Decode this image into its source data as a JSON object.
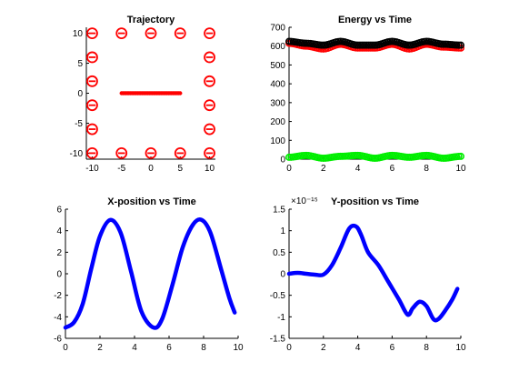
{
  "chart_data": [
    {
      "type": "scatter",
      "title": "Trajectory",
      "xlim": [
        -11,
        11
      ],
      "ylim": [
        -11,
        11
      ],
      "xticks": [
        -10,
        -5,
        0,
        5,
        10
      ],
      "yticks": [
        -10,
        -5,
        0,
        5,
        10
      ],
      "box_x": [
        -10,
        -5,
        0,
        5,
        10
      ],
      "box_y": [
        -10,
        -5,
        0,
        5,
        10
      ],
      "charges": [
        {
          "x": -10,
          "y": 10
        },
        {
          "x": -5,
          "y": 10
        },
        {
          "x": 0,
          "y": 10
        },
        {
          "x": 5,
          "y": 10
        },
        {
          "x": 10,
          "y": 10
        },
        {
          "x": -10,
          "y": -10
        },
        {
          "x": -5,
          "y": -10
        },
        {
          "x": 0,
          "y": -10
        },
        {
          "x": 5,
          "y": -10
        },
        {
          "x": 10,
          "y": -10
        },
        {
          "x": -10,
          "y": 6
        },
        {
          "x": -10,
          "y": 2
        },
        {
          "x": -10,
          "y": -2
        },
        {
          "x": -10,
          "y": -6
        },
        {
          "x": 10,
          "y": 6
        },
        {
          "x": 10,
          "y": 2
        },
        {
          "x": 10,
          "y": -2
        },
        {
          "x": 10,
          "y": -6
        }
      ],
      "path": {
        "x_from": -5,
        "x_to": 5,
        "y": 0
      },
      "marker_color": "#ff0000"
    },
    {
      "type": "line",
      "title": "Energy vs Time",
      "xlim": [
        0,
        10
      ],
      "ylim": [
        0,
        700
      ],
      "xticks": [
        0,
        2,
        4,
        6,
        8,
        10
      ],
      "yticks": [
        0,
        100,
        200,
        300,
        400,
        500,
        600,
        700
      ],
      "series": [
        {
          "color": "#ff0000",
          "x": [
            0,
            1,
            2,
            3,
            4,
            5,
            6,
            7,
            8,
            9,
            10
          ],
          "y": [
            615,
            600,
            585,
            610,
            590,
            590,
            610,
            585,
            610,
            595,
            590
          ]
        },
        {
          "color": "#000000",
          "x": [
            0,
            1,
            2,
            3,
            4,
            5,
            6,
            7,
            8,
            9,
            10
          ],
          "y": [
            625,
            615,
            605,
            625,
            605,
            605,
            625,
            605,
            625,
            610,
            605
          ]
        },
        {
          "color": "#00ee00",
          "x": [
            0,
            1,
            2,
            3,
            4,
            5,
            6,
            7,
            8,
            9,
            10
          ],
          "y": [
            10,
            20,
            5,
            15,
            20,
            5,
            20,
            10,
            20,
            5,
            15
          ]
        }
      ]
    },
    {
      "type": "line",
      "title": "X-position vs Time",
      "xlim": [
        0,
        10
      ],
      "ylim": [
        -6,
        6
      ],
      "xticks": [
        0,
        2,
        4,
        6,
        8,
        10
      ],
      "yticks": [
        -6,
        -4,
        -2,
        0,
        2,
        4,
        6
      ],
      "series": [
        {
          "color": "#0000ff",
          "x": [
            0,
            0.5,
            1,
            1.5,
            2,
            2.6,
            3.2,
            3.8,
            4.4,
            5.1,
            5.6,
            6.2,
            6.8,
            7.4,
            7.9,
            8.4,
            9.0,
            9.5,
            9.8
          ],
          "y": [
            -5,
            -4.5,
            -2.8,
            0.5,
            3.5,
            5.0,
            3.8,
            0.2,
            -3.5,
            -5.0,
            -4.2,
            -1.0,
            2.5,
            4.6,
            5.0,
            3.8,
            0.5,
            -2.3,
            -3.6
          ]
        }
      ]
    },
    {
      "type": "line",
      "title": "Y-position vs Time",
      "yscale_label": "×10⁻¹⁵",
      "xlim": [
        0,
        10
      ],
      "ylim": [
        -1.5,
        1.5
      ],
      "xticks": [
        0,
        2,
        4,
        6,
        8,
        10
      ],
      "yticks": [
        -1.5,
        -1,
        -0.5,
        0,
        0.5,
        1,
        1.5
      ],
      "series": [
        {
          "color": "#0000ff",
          "x": [
            0,
            0.5,
            1,
            1.5,
            2,
            2.5,
            3,
            3.5,
            3.9,
            4.2,
            4.6,
            5.2,
            5.8,
            6.4,
            6.9,
            7.2,
            7.6,
            8.0,
            8.4,
            8.7,
            9.1,
            9.5,
            9.8
          ],
          "y": [
            0,
            0.02,
            0.0,
            -0.02,
            -0.02,
            0.2,
            0.6,
            1.05,
            1.1,
            0.9,
            0.5,
            0.2,
            -0.2,
            -0.6,
            -0.95,
            -0.8,
            -0.65,
            -0.75,
            -1.05,
            -1.05,
            -0.85,
            -0.6,
            -0.35
          ]
        }
      ]
    }
  ]
}
